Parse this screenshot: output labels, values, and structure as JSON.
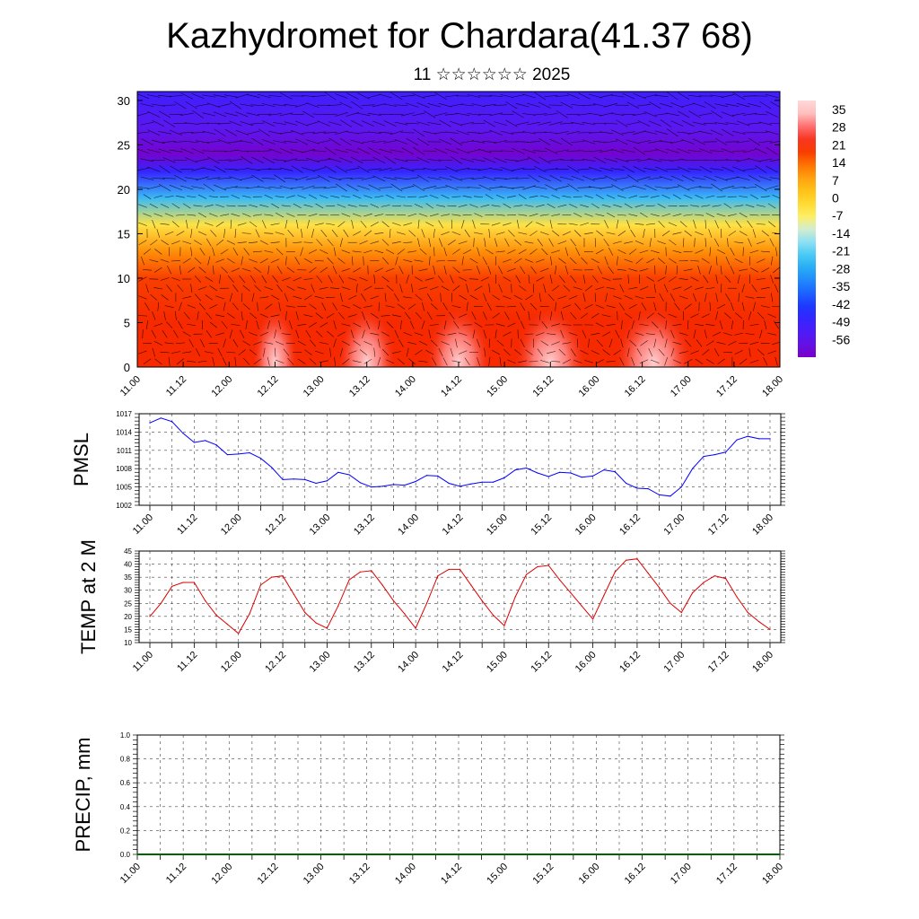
{
  "header": {
    "title": "Kazhydromet for Chardara(41.37 68)",
    "subtitle": "11 ☆☆☆☆☆☆ 2025"
  },
  "colors": {
    "pmsl_line": "#0000ff",
    "temp_line": "#dd0000",
    "precip_line": "#006400",
    "wind_arrows": "#000000"
  },
  "chart_data": [
    {
      "type": "heatmap",
      "title": "",
      "ylabel": "",
      "xlabel": "",
      "x_range": [
        0,
        28
      ],
      "ylim": [
        0,
        31
      ],
      "x_tick_labels": [
        "11.00",
        "11.12",
        "12.00",
        "12.12",
        "13.00",
        "13.12",
        "14.00",
        "14.12",
        "15.00",
        "15.12",
        "16.00",
        "16.12",
        "17.00",
        "17.12",
        "18.00"
      ],
      "y_ticks": [
        0,
        5,
        10,
        15,
        20,
        25,
        30
      ],
      "overlay": "wind arrows",
      "colorbar": {
        "labels": [
          "35",
          "28",
          "21",
          "14",
          "7",
          "0",
          "-7",
          "-14",
          "-21",
          "-28",
          "-35",
          "-42",
          "-49",
          "-56"
        ],
        "values": [
          35,
          28,
          21,
          14,
          7,
          0,
          -7,
          -14,
          -21,
          -28,
          -35,
          -42,
          -49,
          -56
        ]
      },
      "profile": [
        {
          "level": 0,
          "value": 20
        },
        {
          "level": 5,
          "value": 20
        },
        {
          "level": 10,
          "value": 18
        },
        {
          "level": 13,
          "value": 10
        },
        {
          "level": 16,
          "value": -4
        },
        {
          "level": 19,
          "value": -25
        },
        {
          "level": 22,
          "value": -48
        },
        {
          "level": 24,
          "value": -62
        },
        {
          "level": 27,
          "value": -56
        },
        {
          "level": 31,
          "value": -50
        }
      ],
      "warm_cores": [
        {
          "x": 6,
          "value": 31
        },
        {
          "x": 10,
          "value": 33
        },
        {
          "x": 14,
          "value": 34
        },
        {
          "x": 18,
          "value": 35
        },
        {
          "x": 22.5,
          "value": 36
        }
      ]
    },
    {
      "type": "line",
      "ylabel": "PMSL",
      "ylim": [
        1002,
        1017
      ],
      "y_ticks": [
        1002,
        1005,
        1008,
        1011,
        1014,
        1017
      ],
      "x_range": [
        0,
        56
      ],
      "x_tick_labels": [
        "11.00",
        "11.12",
        "12.00",
        "12.12",
        "13.00",
        "13.12",
        "14.00",
        "14.12",
        "15.00",
        "15.12",
        "16.00",
        "16.12",
        "17.00",
        "17.12",
        "18.00"
      ],
      "series": [
        {
          "values": [
            1015.5,
            1016.3,
            1015.7,
            1013.8,
            1012.3,
            1012.6,
            1011.9,
            1010.3,
            1010.4,
            1010.6,
            1009.7,
            1008.2,
            1006.2,
            1006.3,
            1006.2,
            1005.6,
            1006.0,
            1007.4,
            1007.0,
            1005.7,
            1005.0,
            1005.1,
            1005.4,
            1005.3,
            1005.9,
            1006.9,
            1006.8,
            1005.6,
            1005.1,
            1005.5,
            1005.8,
            1005.8,
            1006.5,
            1007.8,
            1008.1,
            1007.3,
            1006.7,
            1007.4,
            1007.3,
            1006.6,
            1006.8,
            1007.8,
            1007.5,
            1005.6,
            1004.8,
            1004.7,
            1003.7,
            1003.5,
            1005.0,
            1008.0,
            1010.0,
            1010.3,
            1010.7,
            1012.7,
            1013.3,
            1012.9,
            1012.9
          ]
        }
      ]
    },
    {
      "type": "line",
      "ylabel": "TEMP at 2 M",
      "ylim": [
        10,
        45
      ],
      "y_ticks": [
        10,
        15,
        20,
        25,
        30,
        35,
        40,
        45
      ],
      "x_range": [
        0,
        56
      ],
      "x_tick_labels": [
        "11.00",
        "11.12",
        "12.00",
        "12.12",
        "13.00",
        "13.12",
        "14.00",
        "14.12",
        "15.00",
        "15.12",
        "16.00",
        "16.12",
        "17.00",
        "17.12",
        "18.00"
      ],
      "series": [
        {
          "values": [
            20,
            25,
            31.5,
            33,
            33,
            26,
            20.5,
            17,
            13.5,
            21,
            32,
            35,
            35.5,
            28.5,
            21.5,
            17.5,
            15.5,
            24,
            34,
            37,
            37.5,
            32,
            26,
            21,
            15.5,
            25,
            35.5,
            38,
            38,
            32,
            26,
            20.5,
            16.5,
            27.5,
            36,
            39,
            39.5,
            34,
            29,
            24,
            19,
            28,
            37,
            41.5,
            42,
            36.5,
            31,
            25,
            21.5,
            29,
            33,
            35.5,
            34.5,
            27.5,
            21.5,
            18,
            15
          ]
        }
      ]
    },
    {
      "type": "line",
      "ylabel": "PRECIP, mm",
      "ylim": [
        0,
        1
      ],
      "y_ticks": [
        0.0,
        0.2,
        0.4,
        0.6,
        0.8,
        1.0
      ],
      "y_tick_labels": [
        "0.0",
        "0.2",
        "0.4",
        "0.6",
        "0.8",
        "1.0"
      ],
      "x_range": [
        0,
        56
      ],
      "x_tick_labels": [
        "11.00",
        "11.12",
        "12.00",
        "12.12",
        "13.00",
        "13.12",
        "14.00",
        "14.12",
        "15.00",
        "15.12",
        "16.00",
        "16.12",
        "17.00",
        "17.12",
        "18.00"
      ],
      "series": [
        {
          "values": [
            0,
            0,
            0,
            0,
            0,
            0,
            0,
            0,
            0,
            0,
            0,
            0,
            0,
            0,
            0,
            0,
            0,
            0,
            0,
            0,
            0,
            0,
            0,
            0,
            0,
            0,
            0,
            0,
            0,
            0,
            0,
            0,
            0,
            0,
            0,
            0,
            0,
            0,
            0,
            0,
            0,
            0,
            0,
            0,
            0,
            0,
            0,
            0,
            0,
            0,
            0,
            0,
            0,
            0,
            0,
            0,
            0
          ]
        }
      ]
    }
  ]
}
